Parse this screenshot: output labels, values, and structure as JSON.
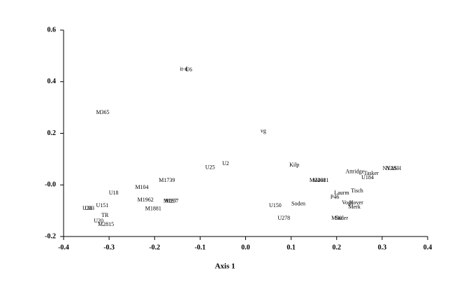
{
  "chart_data": {
    "type": "scatter",
    "x_label": "Axis 1",
    "xlim": [
      -0.4,
      0.4
    ],
    "ylim": [
      -0.2,
      0.6
    ],
    "xticks": [
      -0.4,
      -0.3,
      -0.2,
      -0.1,
      {
        "value": 0,
        "label": "0.0"
      },
      0.1,
      0.2,
      0.3,
      0.4
    ],
    "yticks": [
      -0.2,
      {
        "value": 0,
        "label": "-0.0"
      },
      0.2,
      0.4,
      0.6
    ],
    "color": "#000000",
    "points": [
      {
        "label": "it-d",
        "x": -0.136,
        "y": 0.448
      },
      {
        "label": "U6",
        "x": -0.125,
        "y": 0.445
      },
      {
        "label": "M365",
        "x": -0.314,
        "y": 0.28
      },
      {
        "label": "vg",
        "x": 0.039,
        "y": 0.207
      },
      {
        "label": "U25",
        "x": -0.078,
        "y": 0.066
      },
      {
        "label": "U2",
        "x": -0.044,
        "y": 0.082
      },
      {
        "label": "M1739",
        "x": -0.173,
        "y": 0.017
      },
      {
        "label": "U18",
        "x": -0.29,
        "y": -0.032
      },
      {
        "label": "M104",
        "x": -0.228,
        "y": -0.01
      },
      {
        "label": "M1962",
        "x": -0.22,
        "y": -0.059
      },
      {
        "label": "M267",
        "x": -0.166,
        "y": -0.064
      },
      {
        "label": "M257",
        "x": -0.162,
        "y": -0.064
      },
      {
        "label": "M1881",
        "x": -0.203,
        "y": -0.094
      },
      {
        "label": "U151",
        "x": -0.315,
        "y": -0.081
      },
      {
        "label": "U30",
        "x": -0.348,
        "y": -0.092
      },
      {
        "label": "U33",
        "x": -0.343,
        "y": -0.092
      },
      {
        "label": "TR",
        "x": -0.309,
        "y": -0.119
      },
      {
        "label": "U20",
        "x": -0.323,
        "y": -0.141
      },
      {
        "label": "M2815",
        "x": -0.307,
        "y": -0.154
      },
      {
        "label": "Kilp",
        "x": 0.107,
        "y": 0.076
      },
      {
        "label": "M2461",
        "x": 0.158,
        "y": 0.017
      },
      {
        "label": "M2481",
        "x": 0.165,
        "y": 0.017
      },
      {
        "label": "Attridge",
        "x": 0.24,
        "y": 0.05
      },
      {
        "label": "Tasker",
        "x": 0.276,
        "y": 0.044
      },
      {
        "label": "U184",
        "x": 0.268,
        "y": 0.028
      },
      {
        "label": "NY28",
        "x": 0.316,
        "y": 0.062
      },
      {
        "label": "NASH",
        "x": 0.325,
        "y": 0.062
      },
      {
        "label": "Tisch",
        "x": 0.245,
        "y": -0.024
      },
      {
        "label": "Laurm",
        "x": 0.211,
        "y": -0.032
      },
      {
        "label": "P46",
        "x": 0.196,
        "y": -0.048
      },
      {
        "label": "Hover",
        "x": 0.243,
        "y": -0.07
      },
      {
        "label": "Vogt",
        "x": 0.223,
        "y": -0.07
      },
      {
        "label": "Merk",
        "x": 0.239,
        "y": -0.086
      },
      {
        "label": "Soden",
        "x": 0.116,
        "y": -0.075
      },
      {
        "label": "U150",
        "x": 0.065,
        "y": -0.081
      },
      {
        "label": "U278",
        "x": 0.084,
        "y": -0.13
      },
      {
        "label": "M30",
        "x": 0.2,
        "y": -0.13
      },
      {
        "label": "Sader",
        "x": 0.211,
        "y": -0.13
      }
    ]
  }
}
